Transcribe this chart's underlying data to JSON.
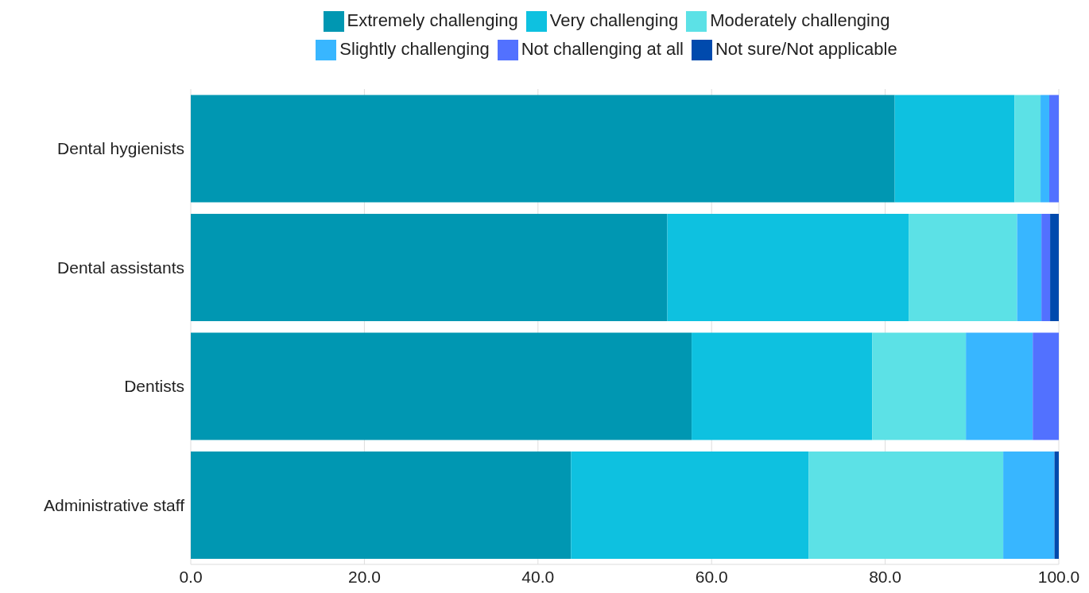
{
  "chart_data": {
    "type": "bar",
    "orientation": "horizontal",
    "stacked": true,
    "categories": [
      "Dental hygienists",
      "Dental assistants",
      "Dentists",
      "Administrative staff"
    ],
    "series": [
      {
        "name": "Extremely challenging",
        "color": "#0097b2",
        "values": [
          81.1,
          54.9,
          57.7,
          43.8
        ]
      },
      {
        "name": "Very challenging",
        "color": "#0ec1e0",
        "values": [
          13.8,
          27.8,
          20.8,
          27.4
        ]
      },
      {
        "name": "Moderately challenging",
        "color": "#5ce1e6",
        "values": [
          3.0,
          12.5,
          10.8,
          22.4
        ]
      },
      {
        "name": "Slightly challenging",
        "color": "#38b6ff",
        "values": [
          1.0,
          2.8,
          7.7,
          5.9
        ]
      },
      {
        "name": "Not challenging at all",
        "color": "#5271ff",
        "values": [
          1.1,
          1.0,
          3.0,
          0
        ]
      },
      {
        "name": "Not sure/Not applicable",
        "color": "#004aad",
        "values": [
          0,
          1.0,
          0,
          0.5
        ]
      }
    ],
    "xlim": [
      0,
      100
    ],
    "xticks": [
      {
        "value": 0,
        "label": "0.0"
      },
      {
        "value": 20,
        "label": "20.0"
      },
      {
        "value": 40,
        "label": "40.0"
      },
      {
        "value": 60,
        "label": "60.0"
      },
      {
        "value": 80,
        "label": "80.0"
      },
      {
        "value": 100,
        "label": "100.0"
      }
    ],
    "grid": "x",
    "legend": "top"
  }
}
